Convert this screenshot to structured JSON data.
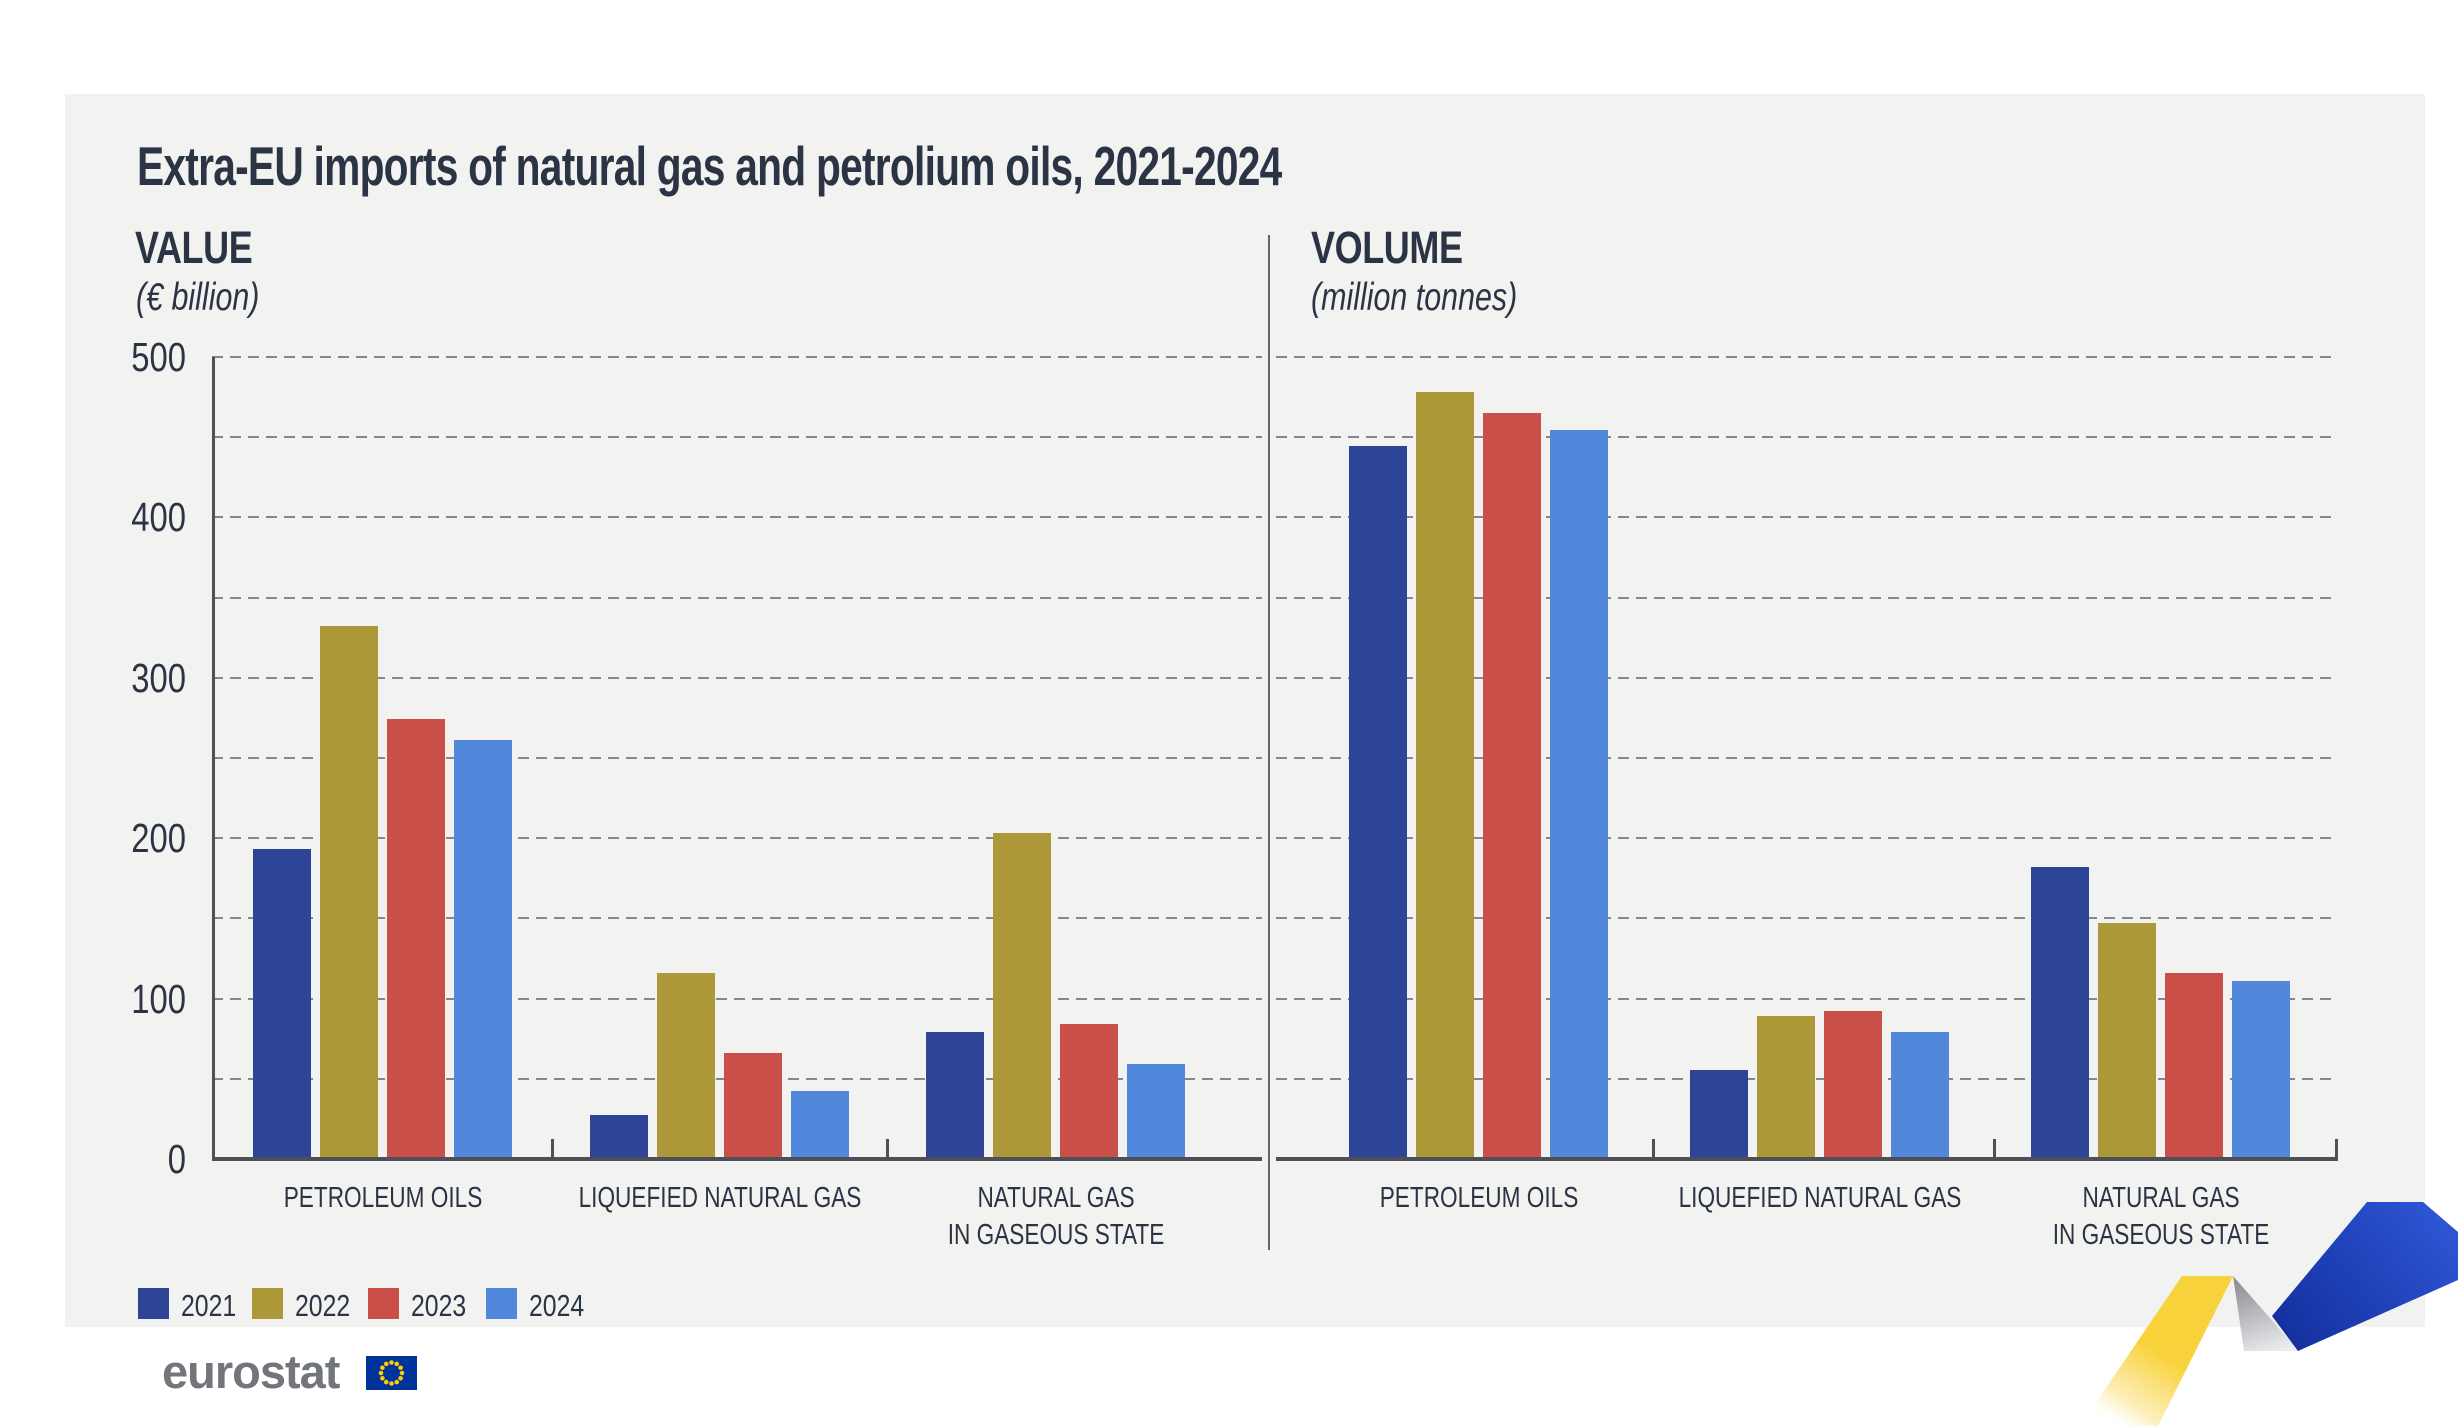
{
  "title": "Extra-EU imports of natural gas and petrolium oils, 2021-2024",
  "legend": {
    "years": [
      {
        "label": "2021",
        "color": "#2E4497"
      },
      {
        "label": "2022",
        "color": "#AC9739"
      },
      {
        "label": "2023",
        "color": "#C94F48"
      },
      {
        "label": "2024",
        "color": "#5288DB"
      }
    ]
  },
  "axis": {
    "tick_labels": [
      0,
      100,
      200,
      300,
      400,
      500
    ],
    "ymax": 500,
    "grid_step": 50
  },
  "categories": [
    {
      "label": "PETROLEUM OILS",
      "lines": [
        "PETROLEUM OILS"
      ]
    },
    {
      "label": "LIQUEFIED NATURAL GAS",
      "lines": [
        "LIQUEFIED NATURAL GAS"
      ]
    },
    {
      "label": "NATURAL GAS IN GASEOUS STATE",
      "lines": [
        "NATURAL GAS",
        "IN GASEOUS STATE"
      ]
    }
  ],
  "chart_data": [
    {
      "type": "bar",
      "title": "VALUE",
      "subtitle": "(€ billion)",
      "ylabel": "€ billion",
      "categories": [
        "PETROLEUM OILS",
        "LIQUEFIED NATURAL GAS",
        "NATURAL GAS IN GASEOUS STATE"
      ],
      "series": [
        {
          "name": "2021",
          "values": [
            192,
            26,
            78
          ]
        },
        {
          "name": "2022",
          "values": [
            331,
            115,
            202
          ]
        },
        {
          "name": "2023",
          "values": [
            273,
            65,
            83
          ]
        },
        {
          "name": "2024",
          "values": [
            260,
            41,
            58
          ]
        }
      ],
      "ylim": [
        0,
        500
      ],
      "grid": true,
      "legend_position": "bottom-left"
    },
    {
      "type": "bar",
      "title": "VOLUME",
      "subtitle": "(million tonnes)",
      "ylabel": "million tonnes",
      "categories": [
        "PETROLEUM OILS",
        "LIQUEFIED NATURAL GAS",
        "NATURAL GAS IN GASEOUS STATE"
      ],
      "series": [
        {
          "name": "2021",
          "values": [
            443,
            54,
            181
          ]
        },
        {
          "name": "2022",
          "values": [
            477,
            88,
            146
          ]
        },
        {
          "name": "2023",
          "values": [
            464,
            91,
            115
          ]
        },
        {
          "name": "2024",
          "values": [
            453,
            78,
            110
          ]
        }
      ],
      "ylim": [
        0,
        500
      ],
      "grid": true
    }
  ],
  "logo": {
    "text": "eurostat"
  },
  "colors": {
    "panel": "#F2F2F1",
    "text": "#2B3444",
    "grid": "#85868E",
    "axis": "#4E4F57",
    "logo_gray": "#72767B",
    "flag_blue": "#003399",
    "star_yellow": "#FFCC00",
    "ribbon_yellow": "#F8D23A",
    "ribbon_gray": "#8E8F96",
    "ribbon_blue_dark": "#14309E",
    "ribbon_blue": "#2F57D6"
  }
}
